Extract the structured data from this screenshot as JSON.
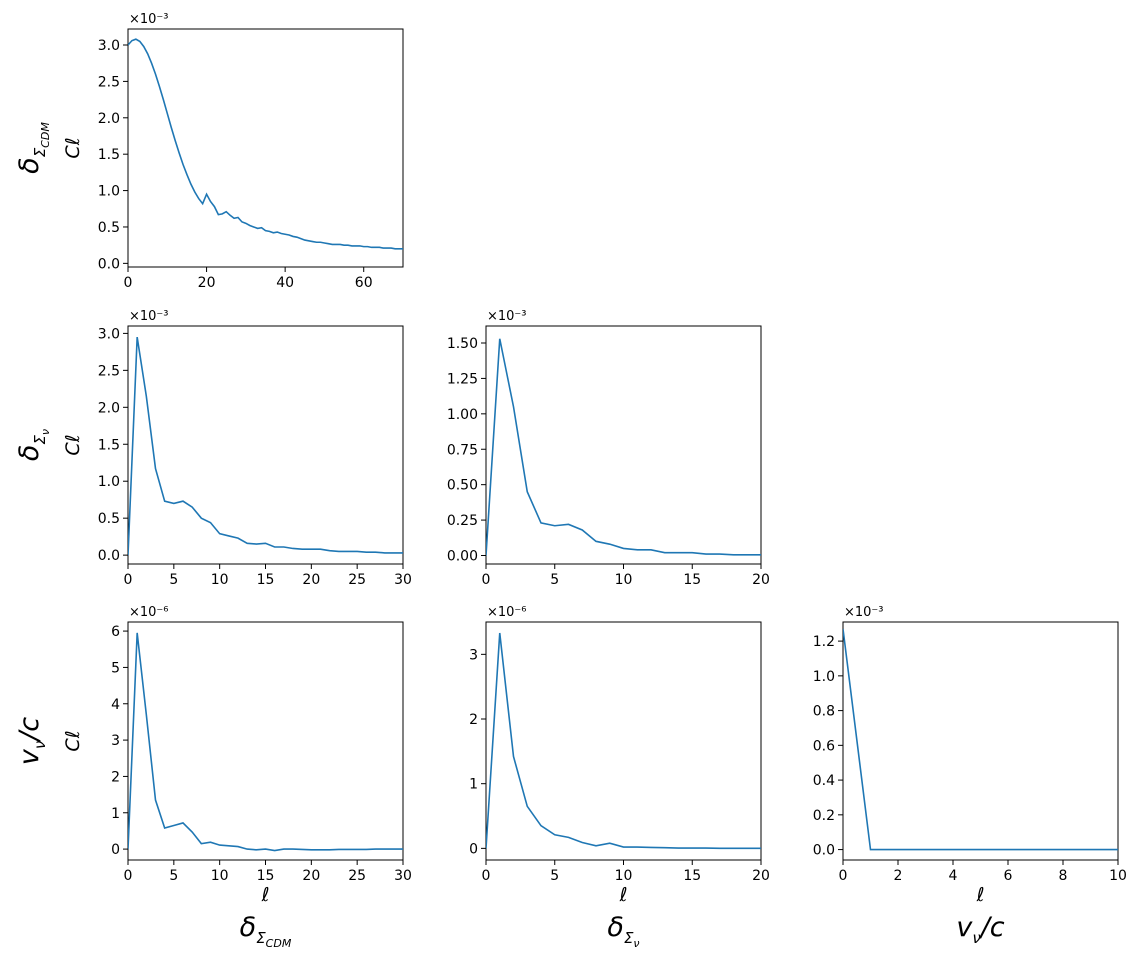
{
  "figure": {
    "row_labels": [
      {
        "base": "δ",
        "sub": "Σ",
        "subsub": "CDM"
      },
      {
        "base": "δ",
        "sub": "Σ",
        "subsub": "ν"
      },
      {
        "base": "v",
        "sub": "ν",
        "tail": "/c"
      }
    ],
    "column_labels": [
      {
        "base": "δ",
        "sub": "Σ",
        "subsub": "CDM"
      },
      {
        "base": "δ",
        "sub": "Σ",
        "subsub": "ν"
      },
      {
        "base": "v",
        "sub": "ν",
        "tail": "/c"
      }
    ]
  },
  "chart_data": [
    {
      "type": "line",
      "row": 0,
      "col": 0,
      "ylabel": "Cℓ",
      "xlabel": "",
      "multiplier": "×10⁻³",
      "xlim": [
        0,
        70
      ],
      "ylim": [
        -0.05,
        3.22
      ],
      "xticks": [
        0,
        20,
        40,
        60
      ],
      "yticks": [
        0.0,
        0.5,
        1.0,
        1.5,
        2.0,
        2.5,
        3.0
      ],
      "ytick_labels": [
        "0.0",
        "0.5",
        "1.0",
        "1.5",
        "2.0",
        "2.5",
        "3.0"
      ],
      "color": "#1f77b4",
      "x": [
        0,
        1,
        2,
        3,
        4,
        5,
        6,
        7,
        8,
        9,
        10,
        11,
        12,
        13,
        14,
        15,
        16,
        17,
        18,
        19,
        20,
        21,
        22,
        23,
        24,
        25,
        26,
        27,
        28,
        29,
        30,
        31,
        32,
        33,
        34,
        35,
        36,
        37,
        38,
        39,
        40,
        41,
        42,
        43,
        44,
        45,
        46,
        47,
        48,
        49,
        50,
        51,
        52,
        53,
        54,
        55,
        56,
        57,
        58,
        59,
        60,
        61,
        62,
        63,
        64,
        65,
        66,
        67,
        68,
        69,
        70
      ],
      "y": [
        3.0,
        3.06,
        3.08,
        3.05,
        2.98,
        2.88,
        2.75,
        2.6,
        2.43,
        2.25,
        2.06,
        1.87,
        1.69,
        1.52,
        1.36,
        1.22,
        1.09,
        0.98,
        0.89,
        0.82,
        0.95,
        0.85,
        0.78,
        0.67,
        0.68,
        0.71,
        0.66,
        0.62,
        0.63,
        0.57,
        0.55,
        0.52,
        0.5,
        0.48,
        0.49,
        0.45,
        0.44,
        0.42,
        0.43,
        0.41,
        0.4,
        0.39,
        0.37,
        0.36,
        0.34,
        0.32,
        0.31,
        0.3,
        0.29,
        0.29,
        0.28,
        0.27,
        0.26,
        0.26,
        0.26,
        0.25,
        0.25,
        0.24,
        0.24,
        0.24,
        0.23,
        0.23,
        0.22,
        0.22,
        0.22,
        0.21,
        0.21,
        0.21,
        0.2,
        0.2,
        0.2
      ]
    },
    {
      "type": "line",
      "row": 1,
      "col": 0,
      "ylabel": "Cℓ",
      "xlabel": "",
      "multiplier": "×10⁻³",
      "xlim": [
        0,
        30
      ],
      "ylim": [
        -0.12,
        3.1
      ],
      "xticks": [
        0,
        5,
        10,
        15,
        20,
        25,
        30
      ],
      "yticks": [
        0.0,
        0.5,
        1.0,
        1.5,
        2.0,
        2.5,
        3.0
      ],
      "ytick_labels": [
        "0.0",
        "0.5",
        "1.0",
        "1.5",
        "2.0",
        "2.5",
        "3.0"
      ],
      "color": "#1f77b4",
      "x": [
        0,
        1,
        2,
        3,
        4,
        5,
        6,
        7,
        8,
        9,
        10,
        11,
        12,
        13,
        14,
        15,
        16,
        17,
        18,
        19,
        20,
        21,
        22,
        23,
        24,
        25,
        26,
        27,
        28,
        29,
        30
      ],
      "y": [
        0.0,
        2.95,
        2.15,
        1.17,
        0.73,
        0.7,
        0.73,
        0.65,
        0.5,
        0.44,
        0.29,
        0.26,
        0.23,
        0.16,
        0.15,
        0.16,
        0.11,
        0.11,
        0.09,
        0.08,
        0.08,
        0.08,
        0.06,
        0.05,
        0.05,
        0.05,
        0.04,
        0.04,
        0.03,
        0.03,
        0.03
      ]
    },
    {
      "type": "line",
      "row": 1,
      "col": 1,
      "ylabel": "",
      "xlabel": "",
      "multiplier": "×10⁻³",
      "xlim": [
        0,
        20
      ],
      "ylim": [
        -0.06,
        1.62
      ],
      "xticks": [
        0,
        5,
        10,
        15,
        20
      ],
      "yticks": [
        0.0,
        0.25,
        0.5,
        0.75,
        1.0,
        1.25,
        1.5
      ],
      "ytick_labels": [
        "0.00",
        "0.25",
        "0.50",
        "0.75",
        "1.00",
        "1.25",
        "1.50"
      ],
      "color": "#1f77b4",
      "x": [
        0,
        1,
        2,
        3,
        4,
        5,
        6,
        7,
        8,
        9,
        10,
        11,
        12,
        13,
        14,
        15,
        16,
        17,
        18,
        19,
        20
      ],
      "y": [
        0.0,
        1.53,
        1.05,
        0.45,
        0.23,
        0.21,
        0.22,
        0.18,
        0.1,
        0.08,
        0.05,
        0.04,
        0.04,
        0.02,
        0.02,
        0.02,
        0.01,
        0.01,
        0.005,
        0.005,
        0.005
      ]
    },
    {
      "type": "line",
      "row": 2,
      "col": 0,
      "ylabel": "Cℓ",
      "xlabel": "ℓ",
      "multiplier": "×10⁻⁶",
      "xlim": [
        0,
        30
      ],
      "ylim": [
        -0.3,
        6.25
      ],
      "xticks": [
        0,
        5,
        10,
        15,
        20,
        25,
        30
      ],
      "yticks": [
        0,
        1,
        2,
        3,
        4,
        5,
        6
      ],
      "ytick_labels": [
        "0",
        "1",
        "2",
        "3",
        "4",
        "5",
        "6"
      ],
      "color": "#1f77b4",
      "x": [
        0,
        1,
        2,
        3,
        4,
        5,
        6,
        7,
        8,
        9,
        10,
        11,
        12,
        13,
        14,
        15,
        16,
        17,
        18,
        19,
        20,
        21,
        22,
        23,
        24,
        25,
        26,
        27,
        28,
        29,
        30
      ],
      "y": [
        0.0,
        5.95,
        3.7,
        1.35,
        0.58,
        0.65,
        0.72,
        0.47,
        0.15,
        0.19,
        0.11,
        0.09,
        0.07,
        0.0,
        -0.02,
        0.0,
        -0.04,
        0.0,
        0.0,
        -0.01,
        -0.02,
        -0.02,
        -0.02,
        -0.01,
        -0.01,
        -0.01,
        -0.01,
        0.0,
        0.0,
        0.0,
        0.0
      ]
    },
    {
      "type": "line",
      "row": 2,
      "col": 1,
      "ylabel": "",
      "xlabel": "ℓ",
      "multiplier": "×10⁻⁶",
      "xlim": [
        0,
        20
      ],
      "ylim": [
        -0.18,
        3.5
      ],
      "xticks": [
        0,
        5,
        10,
        15,
        20
      ],
      "yticks": [
        0,
        1,
        2,
        3
      ],
      "ytick_labels": [
        "0",
        "1",
        "2",
        "3"
      ],
      "color": "#1f77b4",
      "x": [
        0,
        1,
        2,
        3,
        4,
        5,
        6,
        7,
        8,
        9,
        10,
        11,
        12,
        13,
        14,
        15,
        16,
        17,
        18,
        19,
        20
      ],
      "y": [
        0.0,
        3.33,
        1.42,
        0.65,
        0.35,
        0.21,
        0.17,
        0.09,
        0.04,
        0.08,
        0.02,
        0.02,
        0.015,
        0.01,
        0.005,
        0.005,
        0.005,
        0.0,
        0.0,
        0.0,
        0.0
      ]
    },
    {
      "type": "line",
      "row": 2,
      "col": 2,
      "ylabel": "",
      "xlabel": "ℓ",
      "multiplier": "×10⁻³",
      "xlim": [
        0,
        10
      ],
      "ylim": [
        -0.06,
        1.31
      ],
      "xticks": [
        0,
        2,
        4,
        6,
        8,
        10
      ],
      "yticks": [
        0.0,
        0.2,
        0.4,
        0.6,
        0.8,
        1.0,
        1.2
      ],
      "ytick_labels": [
        "0.0",
        "0.2",
        "0.4",
        "0.6",
        "0.8",
        "1.0",
        "1.2"
      ],
      "color": "#1f77b4",
      "x": [
        0,
        1,
        2,
        3,
        4,
        5,
        6,
        7,
        8,
        9,
        10
      ],
      "y": [
        1.27,
        0.0,
        0.0,
        0.0,
        0.0,
        0.0,
        0.0,
        0.0,
        0.0,
        0.0,
        0.0
      ]
    }
  ]
}
